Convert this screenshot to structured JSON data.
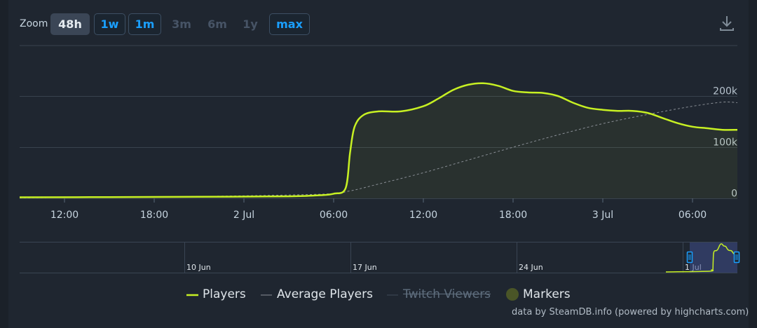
{
  "zoom": {
    "label": "Zoom",
    "buttons": [
      {
        "label": "48h",
        "state": "active"
      },
      {
        "label": "1w",
        "state": "link"
      },
      {
        "label": "1m",
        "state": "link"
      },
      {
        "label": "3m",
        "state": "disabled"
      },
      {
        "label": "6m",
        "state": "disabled"
      },
      {
        "label": "1y",
        "state": "disabled"
      },
      {
        "label": "max",
        "state": "link"
      }
    ]
  },
  "download_icon": "download-icon",
  "legend": {
    "players": "Players",
    "average": "Average Players",
    "twitch": "Twitch Viewers",
    "markers": "Markers"
  },
  "credits": "data by SteamDB.info (powered by highcharts.com)",
  "colors": {
    "players": "#c7f023",
    "average": "#8a8f96",
    "grid": "#39424e",
    "marker": "#4a5527",
    "navigator_mask": "#3e4c8a",
    "navigator_handle": "#1a9fff"
  },
  "chart_data": {
    "type": "line",
    "x_range": [
      "2025-07-01 09:00",
      "2025-07-03 08:00"
    ],
    "ylim": [
      0,
      300000
    ],
    "y_ticks": [
      {
        "value": 0,
        "label": "0"
      },
      {
        "value": 100000,
        "label": "100k"
      },
      {
        "value": 200000,
        "label": "200k"
      }
    ],
    "x_ticks": [
      {
        "hours": 3,
        "label": "12:00"
      },
      {
        "hours": 9,
        "label": "18:00"
      },
      {
        "hours": 15,
        "label": "2 Jul"
      },
      {
        "hours": 21,
        "label": "06:00"
      },
      {
        "hours": 27,
        "label": "12:00"
      },
      {
        "hours": 33,
        "label": "18:00"
      },
      {
        "hours": 39,
        "label": "3 Jul"
      },
      {
        "hours": 45,
        "label": "06:00"
      }
    ],
    "series": [
      {
        "name": "Players",
        "x_hours": [
          0,
          6,
          12,
          18,
          20,
          21,
          21.8,
          22.1,
          22.4,
          23,
          24,
          25.5,
          27,
          28,
          29,
          30,
          31,
          32,
          33,
          34,
          35,
          36,
          37,
          38,
          39,
          40,
          41,
          42,
          43,
          44,
          45,
          46,
          47,
          48
        ],
        "values": [
          2000,
          2500,
          3000,
          4000,
          6000,
          9000,
          20000,
          90000,
          140000,
          163000,
          170000,
          170000,
          180000,
          195000,
          212000,
          222000,
          225000,
          220000,
          210000,
          207000,
          206000,
          200000,
          187000,
          177000,
          173000,
          171000,
          171000,
          167000,
          157000,
          147000,
          140000,
          137000,
          134000,
          134000
        ]
      },
      {
        "name": "Average Players",
        "x_hours": [
          0,
          10,
          20,
          22,
          24,
          27,
          30,
          33,
          36,
          39,
          42,
          45,
          47,
          48
        ],
        "values": [
          1000,
          3000,
          8000,
          14000,
          28000,
          50000,
          75000,
          100000,
          124000,
          146000,
          164000,
          180000,
          188000,
          187000
        ]
      }
    ],
    "navigator": {
      "labels": [
        "10 Jun",
        "17 Jun",
        "24 Jun",
        "1 Jul"
      ]
    },
    "legend_position": "bottom-center"
  }
}
